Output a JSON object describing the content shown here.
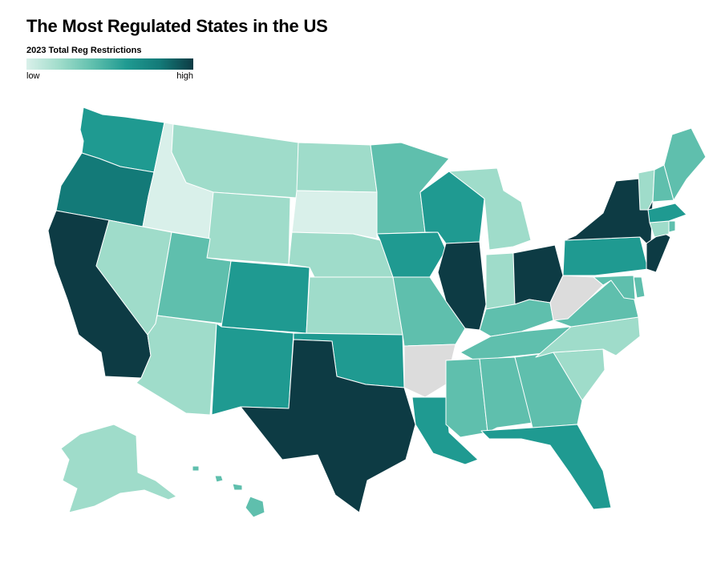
{
  "title": "The Most Regulated States in the US",
  "legend": {
    "title": "2023 Total Reg Restrictions",
    "low_label": "low",
    "high_label": "high",
    "colors": [
      "#d9f0ea",
      "#9fdcca",
      "#5fbfad",
      "#1f9a91",
      "#137a78",
      "#0d3b44"
    ],
    "no_data_color": "#dcdcdc"
  },
  "states": [
    {
      "code": "WA",
      "level": 3
    },
    {
      "code": "OR",
      "level": 4
    },
    {
      "code": "CA",
      "level": 6
    },
    {
      "code": "ID",
      "level": 0
    },
    {
      "code": "NV",
      "level": 1
    },
    {
      "code": "MT",
      "level": 1
    },
    {
      "code": "WY",
      "level": 1
    },
    {
      "code": "UT",
      "level": 2
    },
    {
      "code": "AZ",
      "level": 1
    },
    {
      "code": "CO",
      "level": 3
    },
    {
      "code": "NM",
      "level": 3
    },
    {
      "code": "ND",
      "level": 1
    },
    {
      "code": "SD",
      "level": 0
    },
    {
      "code": "NE",
      "level": 1
    },
    {
      "code": "KS",
      "level": 1
    },
    {
      "code": "OK",
      "level": 3
    },
    {
      "code": "TX",
      "level": 5
    },
    {
      "code": "MN",
      "level": 2
    },
    {
      "code": "IA",
      "level": 3
    },
    {
      "code": "MO",
      "level": 2
    },
    {
      "code": "AR",
      "level": -1
    },
    {
      "code": "LA",
      "level": 3
    },
    {
      "code": "WI",
      "level": 3
    },
    {
      "code": "IL",
      "level": 5
    },
    {
      "code": "MI",
      "level": 1
    },
    {
      "code": "IN",
      "level": 1
    },
    {
      "code": "OH",
      "level": 5
    },
    {
      "code": "KY",
      "level": 2
    },
    {
      "code": "TN",
      "level": 2
    },
    {
      "code": "MS",
      "level": 2
    },
    {
      "code": "AL",
      "level": 2
    },
    {
      "code": "GA",
      "level": 2
    },
    {
      "code": "FL",
      "level": 3
    },
    {
      "code": "SC",
      "level": 1
    },
    {
      "code": "NC",
      "level": 1
    },
    {
      "code": "VA",
      "level": 2
    },
    {
      "code": "WV",
      "level": -1
    },
    {
      "code": "PA",
      "level": 3
    },
    {
      "code": "NY",
      "level": 5
    },
    {
      "code": "NJ",
      "level": 6
    },
    {
      "code": "DE",
      "level": 2
    },
    {
      "code": "MD",
      "level": 2
    },
    {
      "code": "CT",
      "level": 1
    },
    {
      "code": "RI",
      "level": 2
    },
    {
      "code": "MA",
      "level": 3
    },
    {
      "code": "VT",
      "level": 1
    },
    {
      "code": "NH",
      "level": 2
    },
    {
      "code": "ME",
      "level": 2
    },
    {
      "code": "AK",
      "level": 1
    },
    {
      "code": "HI",
      "level": 2
    }
  ]
}
